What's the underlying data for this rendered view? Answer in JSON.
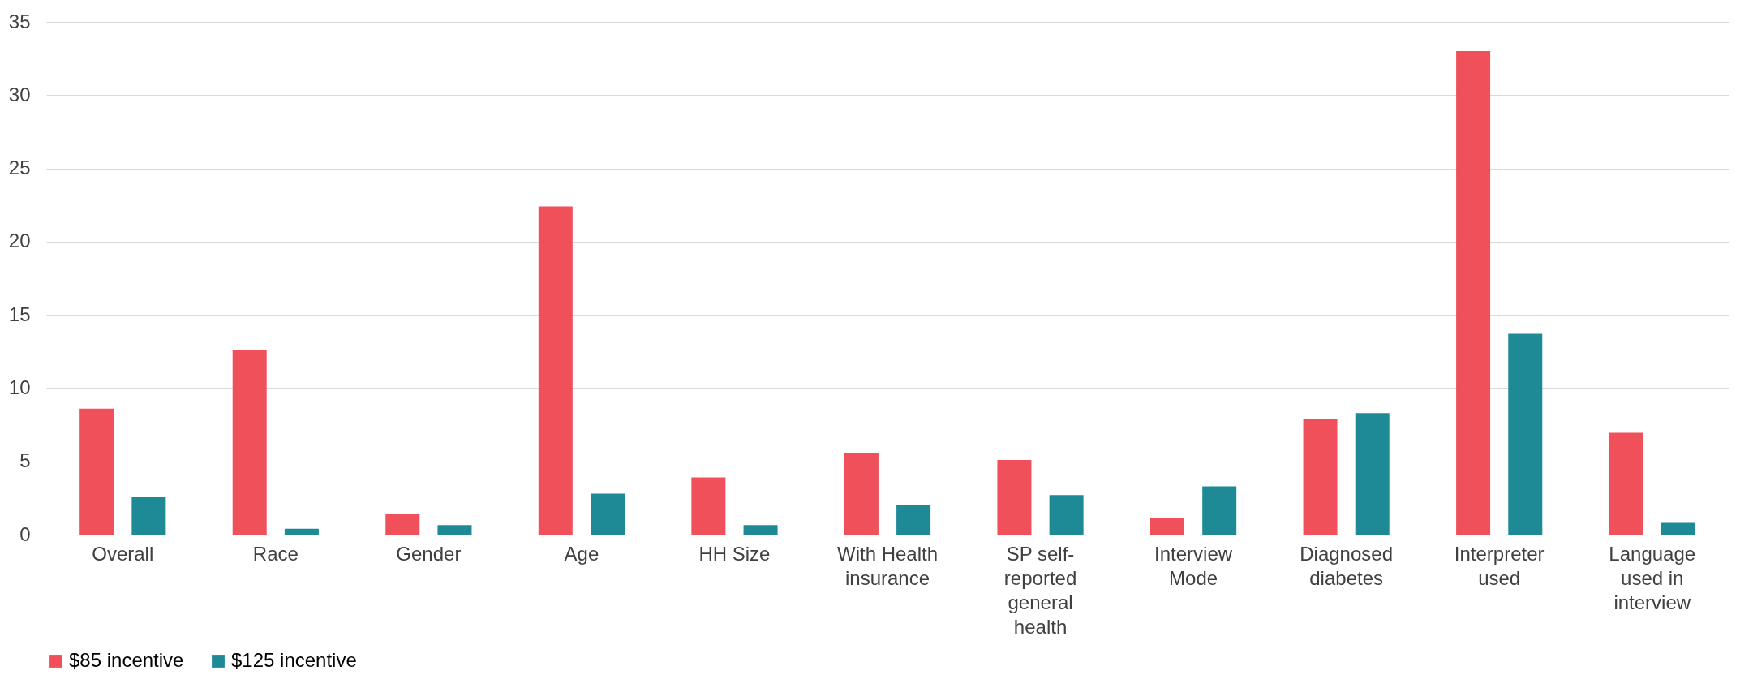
{
  "chart_data": {
    "type": "bar",
    "categories": [
      "Overall",
      "Race",
      "Gender",
      "Age",
      "HH Size",
      "With Health insurance",
      "SP self-reported general health",
      "Interview Mode",
      "Diagnosed diabetes",
      "Interpreter used",
      "Language used in interview"
    ],
    "series": [
      {
        "name": "$85 incentive",
        "color": "#f0505a",
        "values": [
          8.6,
          12.6,
          1.4,
          22.4,
          3.9,
          5.6,
          5.1,
          1.15,
          7.9,
          33.0,
          6.95
        ]
      },
      {
        "name": "$125 incentive",
        "color": "#1e8a96",
        "values": [
          2.6,
          0.4,
          0.65,
          2.8,
          0.65,
          2.0,
          2.7,
          3.3,
          8.3,
          13.7,
          0.8
        ]
      }
    ],
    "ylim": [
      0,
      35
    ],
    "yticks": [
      0,
      5,
      10,
      15,
      20,
      25,
      30,
      35
    ],
    "grid": "y",
    "legend": "bottom"
  }
}
